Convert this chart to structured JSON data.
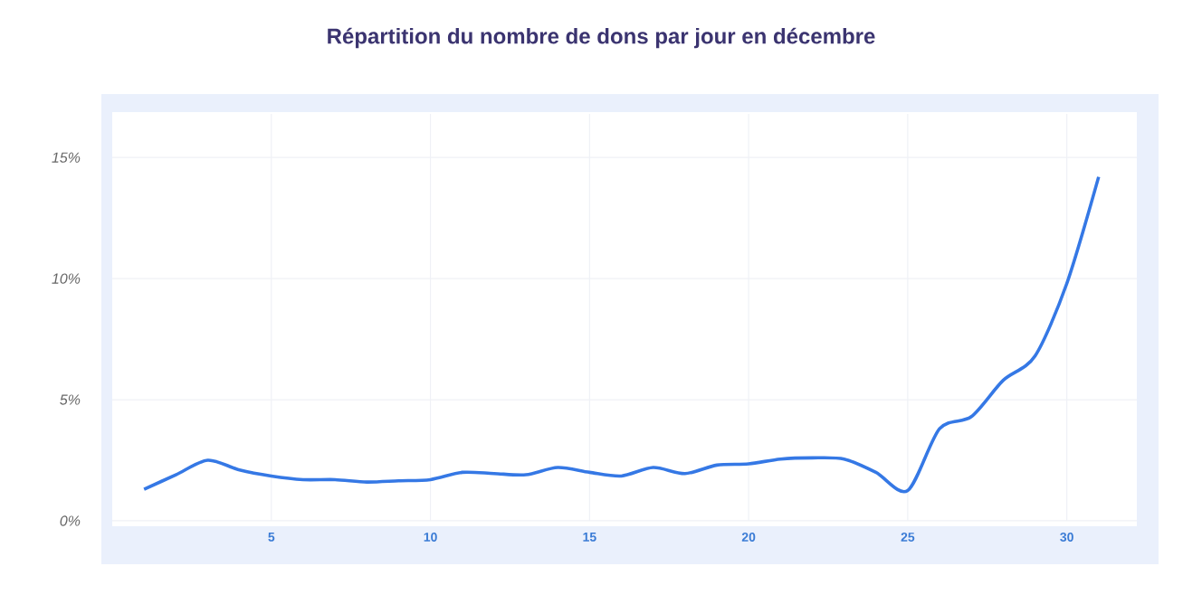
{
  "chart_data": {
    "type": "line",
    "title": "Répartition du nombre de dons par jour en décembre",
    "x": [
      1,
      2,
      3,
      4,
      5,
      6,
      7,
      8,
      9,
      10,
      11,
      12,
      13,
      14,
      15,
      16,
      17,
      18,
      19,
      20,
      21,
      22,
      23,
      24,
      25,
      26,
      27,
      28,
      29,
      30,
      31
    ],
    "series": [
      {
        "color": "#3578e5",
        "values": [
          1.3,
          1.9,
          2.5,
          2.1,
          1.85,
          1.7,
          1.7,
          1.6,
          1.65,
          1.7,
          2.0,
          1.95,
          1.9,
          2.2,
          2.0,
          1.85,
          2.2,
          1.95,
          2.3,
          2.35,
          2.55,
          2.6,
          2.55,
          2.0,
          1.25,
          3.8,
          4.3,
          5.8,
          6.8,
          9.8,
          14.2
        ]
      }
    ],
    "xlim": [
      0,
      32.2
    ],
    "ylim": [
      0,
      16.8
    ],
    "xticks": [
      5,
      10,
      15,
      20,
      25,
      30
    ],
    "yticks": [
      {
        "value": 0,
        "label": "0%"
      },
      {
        "value": 5,
        "label": "5%"
      },
      {
        "value": 10,
        "label": "10%"
      },
      {
        "value": 15,
        "label": "15%"
      }
    ],
    "grid": true
  }
}
